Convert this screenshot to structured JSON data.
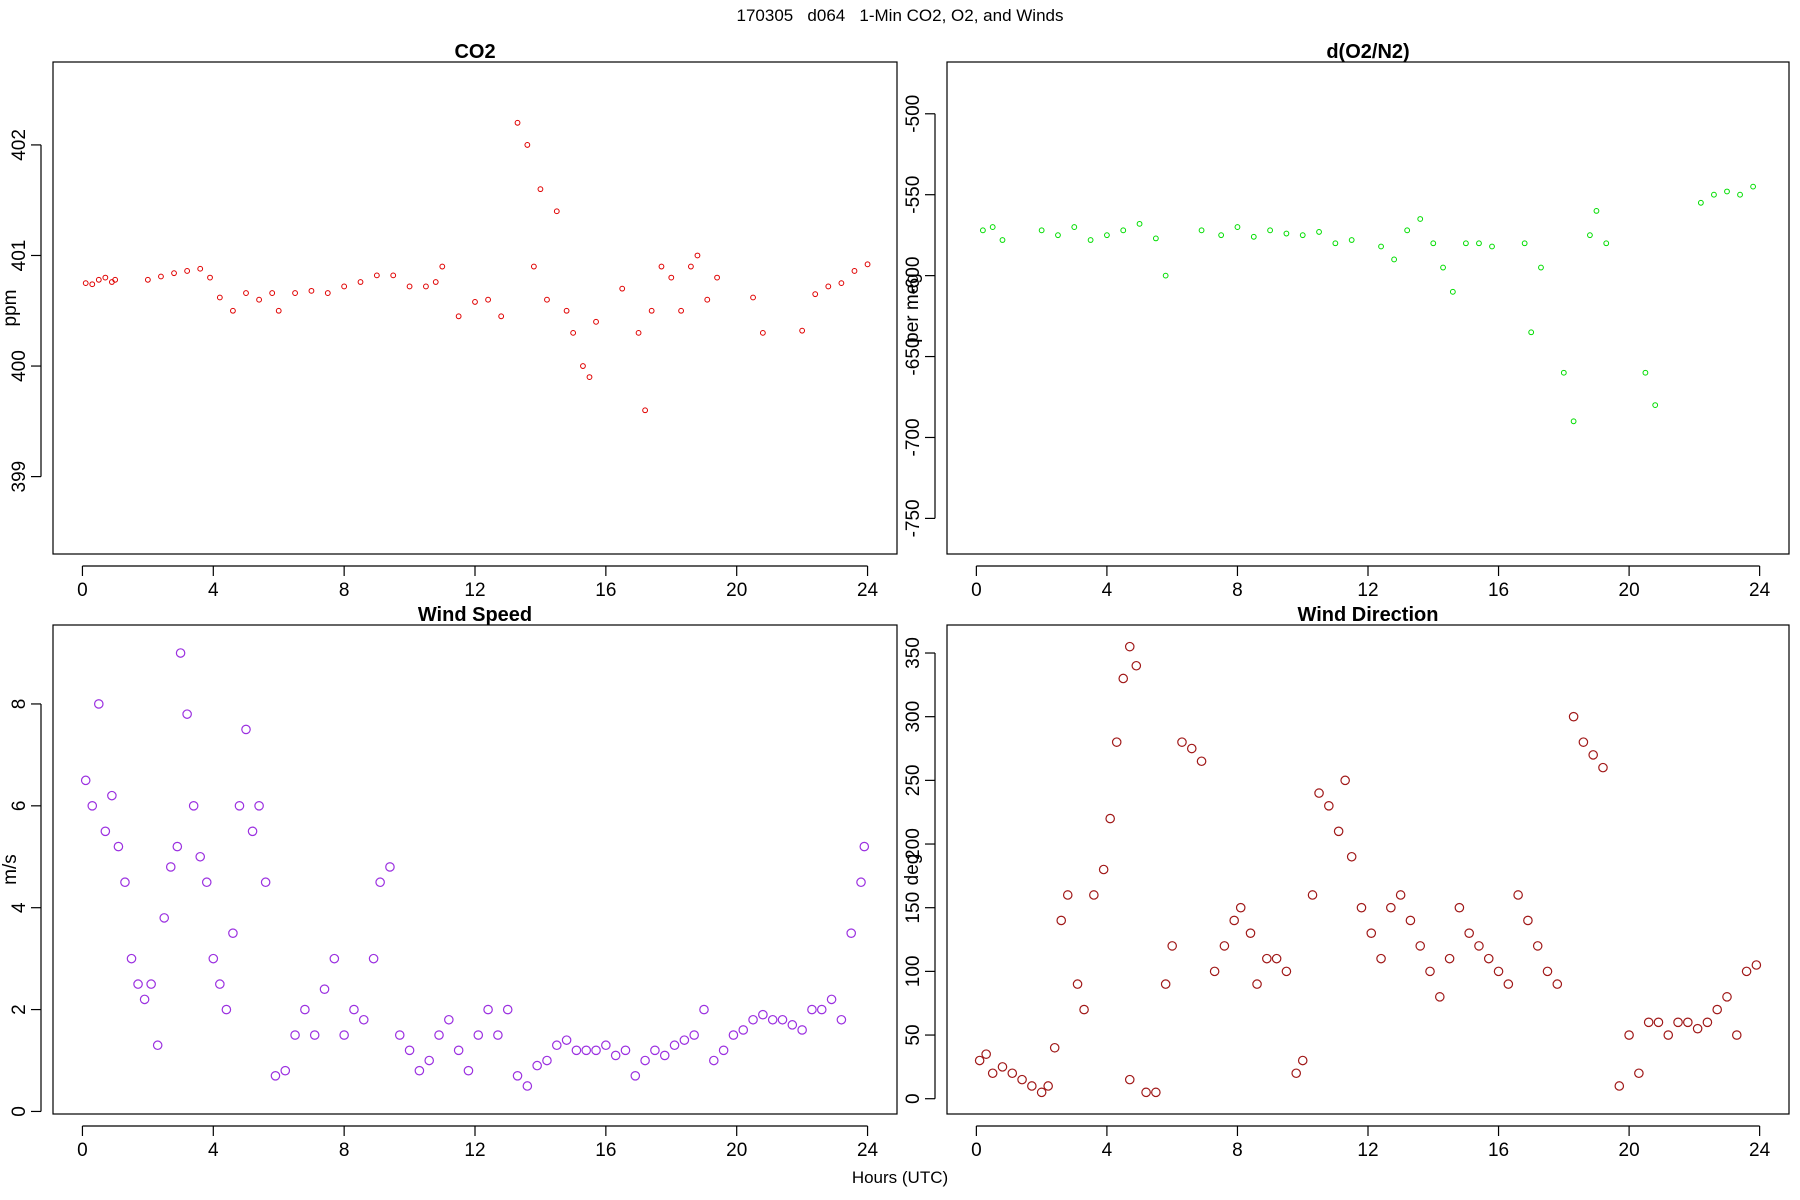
{
  "title": "170305   d064   1-Min CO2, O2, and Winds",
  "xlabel": "Hours (UTC)",
  "chart_data": [
    {
      "type": "scatter",
      "title": "CO2",
      "ylabel": "ppm",
      "xlim": [
        -0.9,
        24.9
      ],
      "ylim": [
        398.3,
        402.75
      ],
      "xticks": [
        0,
        4,
        8,
        12,
        16,
        20,
        24
      ],
      "yticks": [
        399,
        400,
        401,
        402
      ],
      "color": "#e00000",
      "marker_size": "small",
      "points": [
        [
          0.1,
          400.75
        ],
        [
          0.3,
          400.74
        ],
        [
          0.5,
          400.78
        ],
        [
          0.7,
          400.8
        ],
        [
          0.9,
          400.76
        ],
        [
          1.0,
          400.78
        ],
        [
          2.0,
          400.78
        ],
        [
          2.4,
          400.81
        ],
        [
          2.8,
          400.84
        ],
        [
          3.2,
          400.86
        ],
        [
          3.6,
          400.88
        ],
        [
          3.9,
          400.8
        ],
        [
          4.2,
          400.62
        ],
        [
          4.6,
          400.5
        ],
        [
          5.0,
          400.66
        ],
        [
          5.4,
          400.6
        ],
        [
          5.8,
          400.66
        ],
        [
          6.0,
          400.5
        ],
        [
          6.5,
          400.66
        ],
        [
          7.0,
          400.68
        ],
        [
          7.5,
          400.66
        ],
        [
          8.0,
          400.72
        ],
        [
          8.5,
          400.76
        ],
        [
          9.0,
          400.82
        ],
        [
          9.5,
          400.82
        ],
        [
          10.0,
          400.72
        ],
        [
          10.5,
          400.72
        ],
        [
          10.8,
          400.76
        ],
        [
          11.0,
          400.9
        ],
        [
          11.5,
          400.45
        ],
        [
          12.0,
          400.58
        ],
        [
          12.4,
          400.6
        ],
        [
          12.8,
          400.45
        ],
        [
          13.3,
          402.2
        ],
        [
          13.6,
          402.0
        ],
        [
          13.8,
          400.9
        ],
        [
          14.0,
          401.6
        ],
        [
          14.2,
          400.6
        ],
        [
          14.5,
          401.4
        ],
        [
          14.8,
          400.5
        ],
        [
          15.0,
          400.3
        ],
        [
          15.3,
          400.0
        ],
        [
          15.5,
          399.9
        ],
        [
          15.7,
          400.4
        ],
        [
          16.5,
          400.7
        ],
        [
          17.0,
          400.3
        ],
        [
          17.2,
          399.6
        ],
        [
          17.4,
          400.5
        ],
        [
          17.7,
          400.9
        ],
        [
          18.0,
          400.8
        ],
        [
          18.3,
          400.5
        ],
        [
          18.6,
          400.9
        ],
        [
          18.8,
          401.0
        ],
        [
          19.1,
          400.6
        ],
        [
          19.4,
          400.8
        ],
        [
          20.5,
          400.62
        ],
        [
          20.8,
          400.3
        ],
        [
          22.0,
          400.32
        ],
        [
          22.4,
          400.65
        ],
        [
          22.8,
          400.72
        ],
        [
          23.2,
          400.75
        ],
        [
          23.6,
          400.86
        ],
        [
          24.0,
          400.92
        ]
      ]
    },
    {
      "type": "scatter",
      "title": "d(O2/N2)",
      "ylabel": "per meg",
      "xlim": [
        -0.9,
        24.9
      ],
      "ylim": [
        -772,
        -468
      ],
      "xticks": [
        0,
        4,
        8,
        12,
        16,
        20,
        24
      ],
      "yticks": [
        -750,
        -700,
        -650,
        -600,
        -550,
        -500
      ],
      "color": "#00dd00",
      "marker_size": "small",
      "points": [
        [
          0.2,
          -572
        ],
        [
          0.5,
          -570
        ],
        [
          0.8,
          -578
        ],
        [
          2.0,
          -572
        ],
        [
          2.5,
          -575
        ],
        [
          3.0,
          -570
        ],
        [
          3.5,
          -578
        ],
        [
          4.0,
          -575
        ],
        [
          4.5,
          -572
        ],
        [
          5.0,
          -568
        ],
        [
          5.5,
          -577
        ],
        [
          5.8,
          -600
        ],
        [
          6.9,
          -572
        ],
        [
          7.5,
          -575
        ],
        [
          8.0,
          -570
        ],
        [
          8.5,
          -576
        ],
        [
          9.0,
          -572
        ],
        [
          9.5,
          -574
        ],
        [
          10.0,
          -575
        ],
        [
          10.5,
          -573
        ],
        [
          11.0,
          -580
        ],
        [
          11.5,
          -578
        ],
        [
          12.4,
          -582
        ],
        [
          12.8,
          -590
        ],
        [
          13.2,
          -572
        ],
        [
          13.6,
          -565
        ],
        [
          14.0,
          -580
        ],
        [
          14.3,
          -595
        ],
        [
          14.6,
          -610
        ],
        [
          15.0,
          -580
        ],
        [
          15.4,
          -580
        ],
        [
          15.8,
          -582
        ],
        [
          16.8,
          -580
        ],
        [
          17.0,
          -635
        ],
        [
          17.3,
          -595
        ],
        [
          18.0,
          -660
        ],
        [
          18.3,
          -690
        ],
        [
          18.8,
          -575
        ],
        [
          19.0,
          -560
        ],
        [
          19.3,
          -580
        ],
        [
          20.5,
          -660
        ],
        [
          20.8,
          -680
        ],
        [
          22.2,
          -555
        ],
        [
          22.6,
          -550
        ],
        [
          23.0,
          -548
        ],
        [
          23.4,
          -550
        ],
        [
          23.8,
          -545
        ]
      ]
    },
    {
      "type": "scatter",
      "title": "Wind Speed",
      "ylabel": "m/s",
      "xlim": [
        -0.9,
        24.9
      ],
      "ylim": [
        -0.05,
        9.55
      ],
      "xticks": [
        0,
        4,
        8,
        12,
        16,
        20,
        24
      ],
      "yticks": [
        0,
        2,
        4,
        6,
        8
      ],
      "color": "#9b30e0",
      "marker_size": "large",
      "points": [
        [
          0.1,
          6.5
        ],
        [
          0.3,
          6.0
        ],
        [
          0.5,
          8.0
        ],
        [
          0.7,
          5.5
        ],
        [
          0.9,
          6.2
        ],
        [
          1.1,
          5.2
        ],
        [
          1.3,
          4.5
        ],
        [
          1.5,
          3.0
        ],
        [
          1.7,
          2.5
        ],
        [
          1.9,
          2.2
        ],
        [
          2.1,
          2.5
        ],
        [
          2.3,
          1.3
        ],
        [
          2.5,
          3.8
        ],
        [
          2.7,
          4.8
        ],
        [
          2.9,
          5.2
        ],
        [
          3.0,
          9.0
        ],
        [
          3.2,
          7.8
        ],
        [
          3.4,
          6.0
        ],
        [
          3.6,
          5.0
        ],
        [
          3.8,
          4.5
        ],
        [
          4.0,
          3.0
        ],
        [
          4.2,
          2.5
        ],
        [
          4.4,
          2.0
        ],
        [
          4.6,
          3.5
        ],
        [
          4.8,
          6.0
        ],
        [
          5.0,
          7.5
        ],
        [
          5.2,
          5.5
        ],
        [
          5.4,
          6.0
        ],
        [
          5.6,
          4.5
        ],
        [
          5.9,
          0.7
        ],
        [
          6.2,
          0.8
        ],
        [
          6.5,
          1.5
        ],
        [
          6.8,
          2.0
        ],
        [
          7.1,
          1.5
        ],
        [
          7.4,
          2.4
        ],
        [
          7.7,
          3.0
        ],
        [
          8.0,
          1.5
        ],
        [
          8.3,
          2.0
        ],
        [
          8.6,
          1.8
        ],
        [
          8.9,
          3.0
        ],
        [
          9.1,
          4.5
        ],
        [
          9.4,
          4.8
        ],
        [
          9.7,
          1.5
        ],
        [
          10.0,
          1.2
        ],
        [
          10.3,
          0.8
        ],
        [
          10.6,
          1.0
        ],
        [
          10.9,
          1.5
        ],
        [
          11.2,
          1.8
        ],
        [
          11.5,
          1.2
        ],
        [
          11.8,
          0.8
        ],
        [
          12.1,
          1.5
        ],
        [
          12.4,
          2.0
        ],
        [
          12.7,
          1.5
        ],
        [
          13.0,
          2.0
        ],
        [
          13.3,
          0.7
        ],
        [
          13.6,
          0.5
        ],
        [
          13.9,
          0.9
        ],
        [
          14.2,
          1.0
        ],
        [
          14.5,
          1.3
        ],
        [
          14.8,
          1.4
        ],
        [
          15.1,
          1.2
        ],
        [
          15.4,
          1.2
        ],
        [
          15.7,
          1.2
        ],
        [
          16.0,
          1.3
        ],
        [
          16.3,
          1.1
        ],
        [
          16.6,
          1.2
        ],
        [
          16.9,
          0.7
        ],
        [
          17.2,
          1.0
        ],
        [
          17.5,
          1.2
        ],
        [
          17.8,
          1.1
        ],
        [
          18.1,
          1.3
        ],
        [
          18.4,
          1.4
        ],
        [
          18.7,
          1.5
        ],
        [
          19.0,
          2.0
        ],
        [
          19.3,
          1.0
        ],
        [
          19.6,
          1.2
        ],
        [
          19.9,
          1.5
        ],
        [
          20.2,
          1.6
        ],
        [
          20.5,
          1.8
        ],
        [
          20.8,
          1.9
        ],
        [
          21.1,
          1.8
        ],
        [
          21.4,
          1.8
        ],
        [
          21.7,
          1.7
        ],
        [
          22.0,
          1.6
        ],
        [
          22.3,
          2.0
        ],
        [
          22.6,
          2.0
        ],
        [
          22.9,
          2.2
        ],
        [
          23.2,
          1.8
        ],
        [
          23.5,
          3.5
        ],
        [
          23.8,
          4.5
        ],
        [
          23.9,
          5.2
        ]
      ]
    },
    {
      "type": "scatter",
      "title": "Wind Direction",
      "ylabel": "deg",
      "xlim": [
        -0.9,
        24.9
      ],
      "ylim": [
        -12,
        372
      ],
      "xticks": [
        0,
        4,
        8,
        12,
        16,
        20,
        24
      ],
      "yticks": [
        0,
        50,
        100,
        150,
        200,
        250,
        300,
        350
      ],
      "color": "#a01818",
      "marker_size": "large",
      "points": [
        [
          0.1,
          30
        ],
        [
          0.3,
          35
        ],
        [
          0.5,
          20
        ],
        [
          0.8,
          25
        ],
        [
          1.1,
          20
        ],
        [
          1.4,
          15
        ],
        [
          1.7,
          10
        ],
        [
          2.0,
          5
        ],
        [
          2.2,
          10
        ],
        [
          2.4,
          40
        ],
        [
          2.6,
          140
        ],
        [
          2.8,
          160
        ],
        [
          3.1,
          90
        ],
        [
          3.3,
          70
        ],
        [
          3.6,
          160
        ],
        [
          3.9,
          180
        ],
        [
          4.1,
          220
        ],
        [
          4.3,
          280
        ],
        [
          4.5,
          330
        ],
        [
          4.7,
          355
        ],
        [
          4.9,
          340
        ],
        [
          4.7,
          15
        ],
        [
          5.2,
          5
        ],
        [
          5.5,
          5
        ],
        [
          5.8,
          90
        ],
        [
          6.0,
          120
        ],
        [
          6.3,
          280
        ],
        [
          6.6,
          275
        ],
        [
          6.9,
          265
        ],
        [
          7.3,
          100
        ],
        [
          7.6,
          120
        ],
        [
          7.9,
          140
        ],
        [
          8.1,
          150
        ],
        [
          8.4,
          130
        ],
        [
          8.6,
          90
        ],
        [
          8.9,
          110
        ],
        [
          9.2,
          110
        ],
        [
          9.5,
          100
        ],
        [
          9.8,
          20
        ],
        [
          10.0,
          30
        ],
        [
          10.3,
          160
        ],
        [
          10.5,
          240
        ],
        [
          10.8,
          230
        ],
        [
          11.1,
          210
        ],
        [
          11.3,
          250
        ],
        [
          11.5,
          190
        ],
        [
          11.8,
          150
        ],
        [
          12.1,
          130
        ],
        [
          12.4,
          110
        ],
        [
          12.7,
          150
        ],
        [
          13.0,
          160
        ],
        [
          13.3,
          140
        ],
        [
          13.6,
          120
        ],
        [
          13.9,
          100
        ],
        [
          14.2,
          80
        ],
        [
          14.5,
          110
        ],
        [
          14.8,
          150
        ],
        [
          15.1,
          130
        ],
        [
          15.4,
          120
        ],
        [
          15.7,
          110
        ],
        [
          16.0,
          100
        ],
        [
          16.3,
          90
        ],
        [
          16.6,
          160
        ],
        [
          16.9,
          140
        ],
        [
          17.2,
          120
        ],
        [
          17.5,
          100
        ],
        [
          17.8,
          90
        ],
        [
          18.3,
          300
        ],
        [
          18.6,
          280
        ],
        [
          18.9,
          270
        ],
        [
          19.2,
          260
        ],
        [
          19.7,
          10
        ],
        [
          20.0,
          50
        ],
        [
          20.3,
          20
        ],
        [
          20.6,
          60
        ],
        [
          20.9,
          60
        ],
        [
          21.2,
          50
        ],
        [
          21.5,
          60
        ],
        [
          21.8,
          60
        ],
        [
          22.1,
          55
        ],
        [
          22.4,
          60
        ],
        [
          22.7,
          70
        ],
        [
          23.0,
          80
        ],
        [
          23.3,
          50
        ],
        [
          23.6,
          100
        ],
        [
          23.9,
          105
        ]
      ]
    }
  ]
}
